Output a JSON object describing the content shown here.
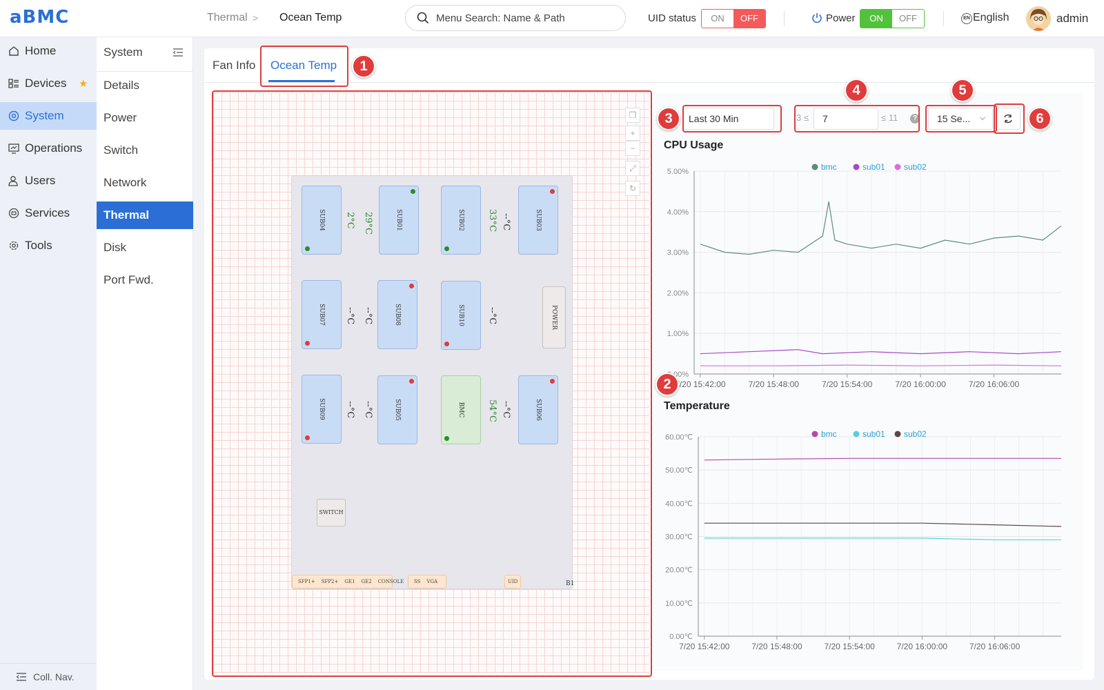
{
  "header": {
    "logo": "aBMC",
    "breadcrumb": [
      "Thermal",
      "Ocean Temp"
    ],
    "search_placeholder": "Menu Search: Name & Path",
    "uid_status_label": "UID status",
    "uid_on": "ON",
    "uid_off": "OFF",
    "power_label": "Power",
    "power_on": "ON",
    "power_off": "OFF",
    "lang_icon": "EN",
    "language": "English",
    "user": "admin"
  },
  "nav": {
    "items": [
      {
        "label": "Home",
        "icon": "home-icon"
      },
      {
        "label": "Devices",
        "icon": "devices-icon",
        "starred": true
      },
      {
        "label": "System",
        "icon": "system-icon",
        "active": true
      },
      {
        "label": "Operations",
        "icon": "operations-icon"
      },
      {
        "label": "Users",
        "icon": "users-icon"
      },
      {
        "label": "Services",
        "icon": "services-icon"
      },
      {
        "label": "Tools",
        "icon": "tools-icon"
      }
    ],
    "collapse_label": "Coll. Nav."
  },
  "subnav": {
    "title": "System",
    "items": [
      "Details",
      "Power",
      "Switch",
      "Network",
      "Thermal",
      "Disk",
      "Port Fwd."
    ],
    "active": "Thermal"
  },
  "tabs": [
    "Fan Info",
    "Ocean Temp"
  ],
  "active_tab": "Ocean Temp",
  "annotations": [
    "1",
    "2",
    "3",
    "4",
    "5",
    "6"
  ],
  "colors": {
    "accent": "#2b6fd6",
    "highlight": "#e03c3c",
    "on_green": "#52c23c",
    "off_red": "#f35a5a"
  },
  "diagram": {
    "slots": [
      {
        "label": "SUB04",
        "dot": "green"
      },
      {
        "label": "SUB01",
        "dot": "green"
      },
      {
        "label": "SUB02",
        "dot": "green"
      },
      {
        "label": "SUB03",
        "dot": "red"
      },
      {
        "label": "SUB07",
        "dot": "red"
      },
      {
        "label": "SUB08",
        "dot": "red"
      },
      {
        "label": "SUB10",
        "dot": "red"
      },
      {
        "label": "POWER"
      },
      {
        "label": "SUB09",
        "dot": "red"
      },
      {
        "label": "SUB05",
        "dot": "red"
      },
      {
        "label": "BMC",
        "dot": "green"
      },
      {
        "label": "SUB06",
        "dot": "red"
      }
    ],
    "temps": [
      "2°C",
      "29°C",
      "33°C",
      "--°C",
      "--°C",
      "--°C",
      "--°C",
      "--°C",
      "--°C",
      "54°C",
      "--°C"
    ],
    "switch_label": "SWITCH",
    "ports_left": [
      "SFP1+",
      "SFP2+",
      "GE1",
      "GE2",
      "CONSOLE"
    ],
    "ports_mid": [
      "SS",
      "VGA"
    ],
    "ports_right": [
      "UID"
    ],
    "board_label": "B1"
  },
  "controls": {
    "time_range": "Last 30 Min",
    "min_bound": "3 ≤",
    "max_bound": "≤ 11",
    "count": "7",
    "interval": "15 Se...",
    "help": "?"
  },
  "chart_data": [
    {
      "type": "line",
      "title": "CPU Usage",
      "x_ticks": [
        "7/20 15:42:00",
        "7/20 15:48:00",
        "7/20 15:54:00",
        "7/20 16:00:00",
        "7/20 16:06:00"
      ],
      "y_ticks": [
        "0.00%",
        "1.00%",
        "2.00%",
        "3.00%",
        "4.00%",
        "5.00%"
      ],
      "ylim": [
        0,
        5
      ],
      "x_range": [
        "7/20 15:41:30",
        "7/20 16:11:30"
      ],
      "legend": "top-center",
      "grid": true,
      "series": [
        {
          "name": "bmc",
          "color": "#5b8c7a",
          "x": [
            "15:42:00",
            "15:44:00",
            "15:46:00",
            "15:48:00",
            "15:50:00",
            "15:52:00",
            "15:52:30",
            "15:53:00",
            "15:54:00",
            "15:56:00",
            "15:58:00",
            "16:00:00",
            "16:02:00",
            "16:04:00",
            "16:06:00",
            "16:08:00",
            "16:10:00",
            "16:11:30"
          ],
          "y": [
            3.2,
            3.0,
            2.95,
            3.05,
            3.0,
            3.4,
            4.25,
            3.3,
            3.2,
            3.1,
            3.2,
            3.1,
            3.3,
            3.2,
            3.35,
            3.4,
            3.3,
            3.65
          ]
        },
        {
          "name": "sub01",
          "color": "#a64ac9",
          "x": [
            "15:42:00",
            "15:46:00",
            "15:50:00",
            "15:52:00",
            "15:56:00",
            "16:00:00",
            "16:04:00",
            "16:08:00",
            "16:11:30"
          ],
          "y": [
            0.5,
            0.55,
            0.6,
            0.5,
            0.55,
            0.5,
            0.55,
            0.5,
            0.55
          ]
        },
        {
          "name": "sub02",
          "color": "#d86ee0",
          "x": [
            "15:42:00",
            "15:48:00",
            "15:54:00",
            "16:00:00",
            "16:06:00",
            "16:11:30"
          ],
          "y": [
            0.2,
            0.2,
            0.22,
            0.2,
            0.22,
            0.2
          ]
        }
      ]
    },
    {
      "type": "line",
      "title": "Temperature",
      "x_ticks": [
        "7/20 15:42:00",
        "7/20 15:48:00",
        "7/20 15:54:00",
        "7/20 16:00:00",
        "7/20 16:06:00"
      ],
      "y_ticks": [
        "0.00℃",
        "10.00℃",
        "20.00℃",
        "30.00℃",
        "40.00℃",
        "50.00℃",
        "60.00℃"
      ],
      "ylim": [
        0,
        60
      ],
      "x_range": [
        "7/20 15:41:30",
        "7/20 16:11:30"
      ],
      "legend": "top-center",
      "grid": true,
      "series": [
        {
          "name": "bmc",
          "color": "#b54aa8",
          "x": [
            "15:42:00",
            "15:48:00",
            "15:54:00",
            "16:00:00",
            "16:06:00",
            "16:11:30"
          ],
          "y": [
            53.0,
            53.3,
            53.5,
            53.5,
            53.5,
            53.5
          ]
        },
        {
          "name": "sub01",
          "color": "#56d0dd",
          "x": [
            "15:42:00",
            "15:48:00",
            "15:54:00",
            "16:00:00",
            "16:06:00",
            "16:11:30"
          ],
          "y": [
            29.5,
            29.5,
            29.5,
            29.5,
            29.0,
            29.0
          ]
        },
        {
          "name": "sub02",
          "color": "#5a4848",
          "x": [
            "15:42:00",
            "15:48:00",
            "15:54:00",
            "16:00:00",
            "16:06:00",
            "16:11:30"
          ],
          "y": [
            34.0,
            34.0,
            34.0,
            34.0,
            33.5,
            33.0
          ]
        }
      ]
    }
  ]
}
